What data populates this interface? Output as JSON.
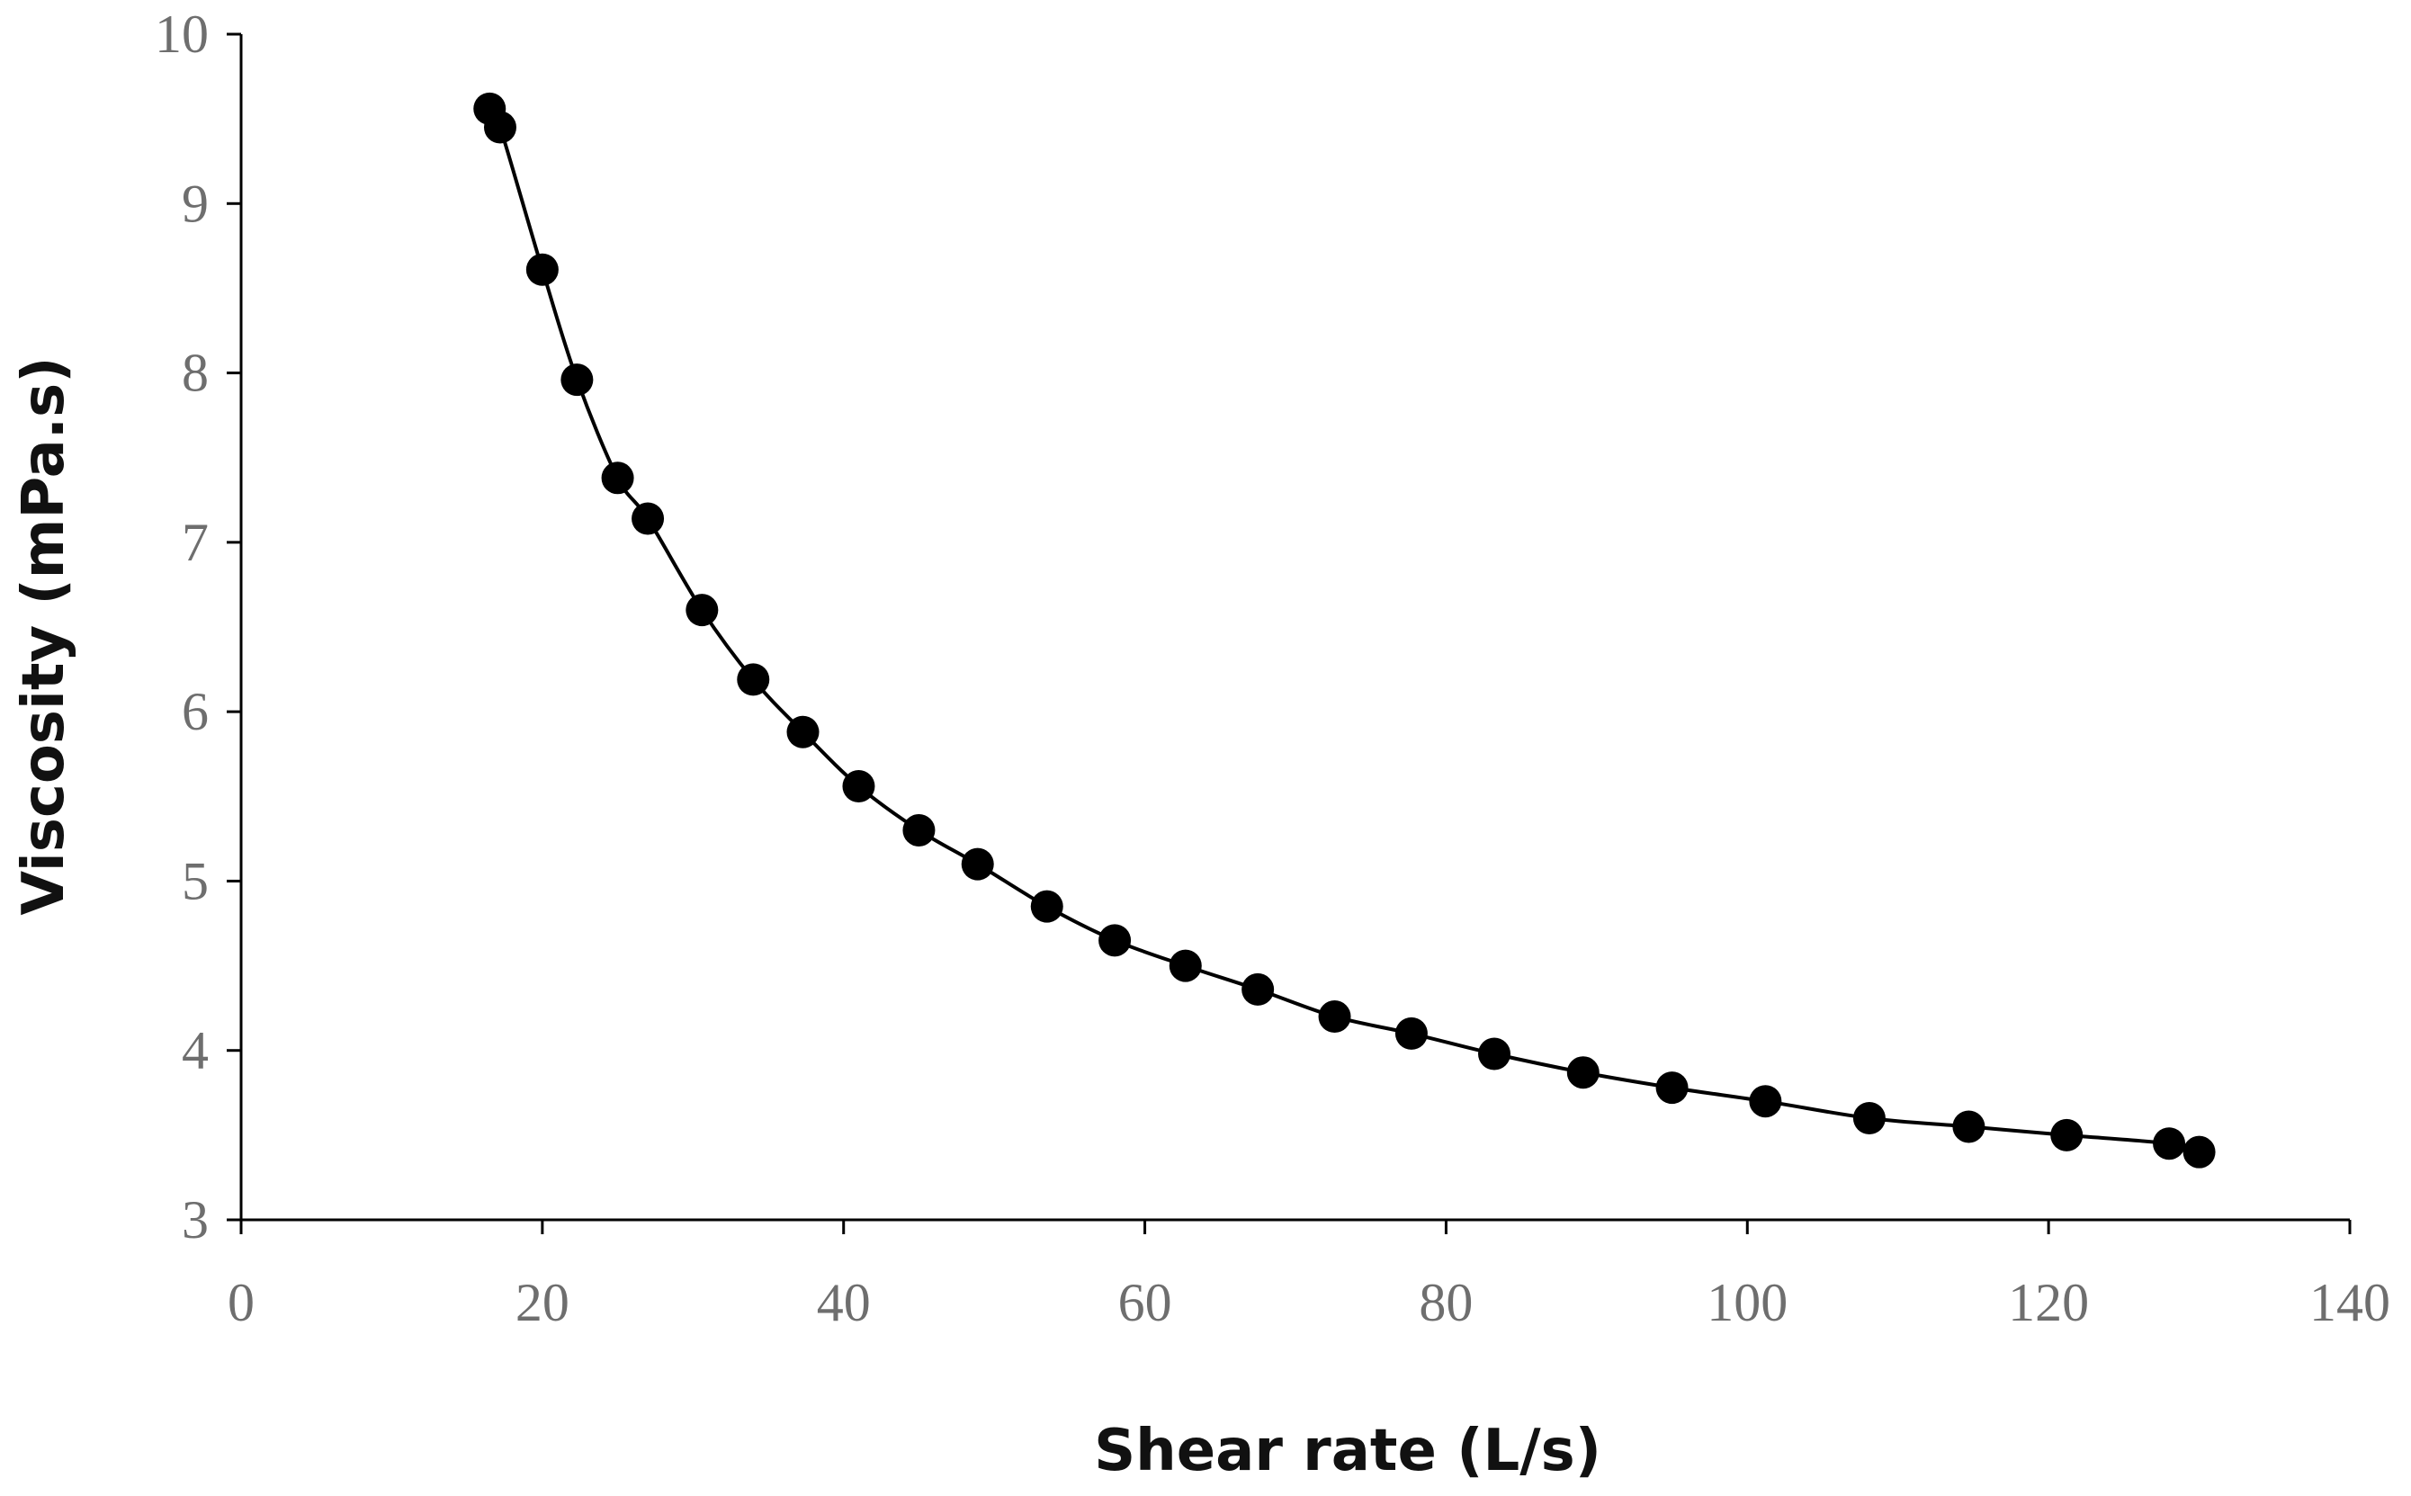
{
  "chart_data": {
    "type": "scatter",
    "title": "",
    "xlabel": "Shear rate (L/s)",
    "ylabel": "Viscosity (mPa.s)",
    "xlim": [
      0,
      140
    ],
    "ylim": [
      3,
      10
    ],
    "xticks": [
      "0",
      "20",
      "40",
      "60",
      "80",
      "100",
      "120",
      "140"
    ],
    "yticks": [
      "3",
      "4",
      "5",
      "6",
      "7",
      "8",
      "9",
      "10"
    ],
    "grid": false,
    "legend": "none",
    "series": [
      {
        "marker": "filled-circle",
        "line": "smooth",
        "color": "#000000",
        "x": [
          16.5,
          17.2,
          20.0,
          22.3,
          25.0,
          27.0,
          30.6,
          34.0,
          37.3,
          41.0,
          45.0,
          48.9,
          53.5,
          58.0,
          62.7,
          67.5,
          72.6,
          77.7,
          83.2,
          89.1,
          95.0,
          101.2,
          108.1,
          114.7,
          121.2,
          128.0,
          130.0
        ],
        "y": [
          9.56,
          9.45,
          8.61,
          7.96,
          7.38,
          7.14,
          6.6,
          6.19,
          5.88,
          5.56,
          5.3,
          5.1,
          4.85,
          4.65,
          4.5,
          4.36,
          4.2,
          4.1,
          3.98,
          3.87,
          3.78,
          3.7,
          3.6,
          3.55,
          3.5,
          3.45,
          3.4
        ]
      }
    ]
  }
}
